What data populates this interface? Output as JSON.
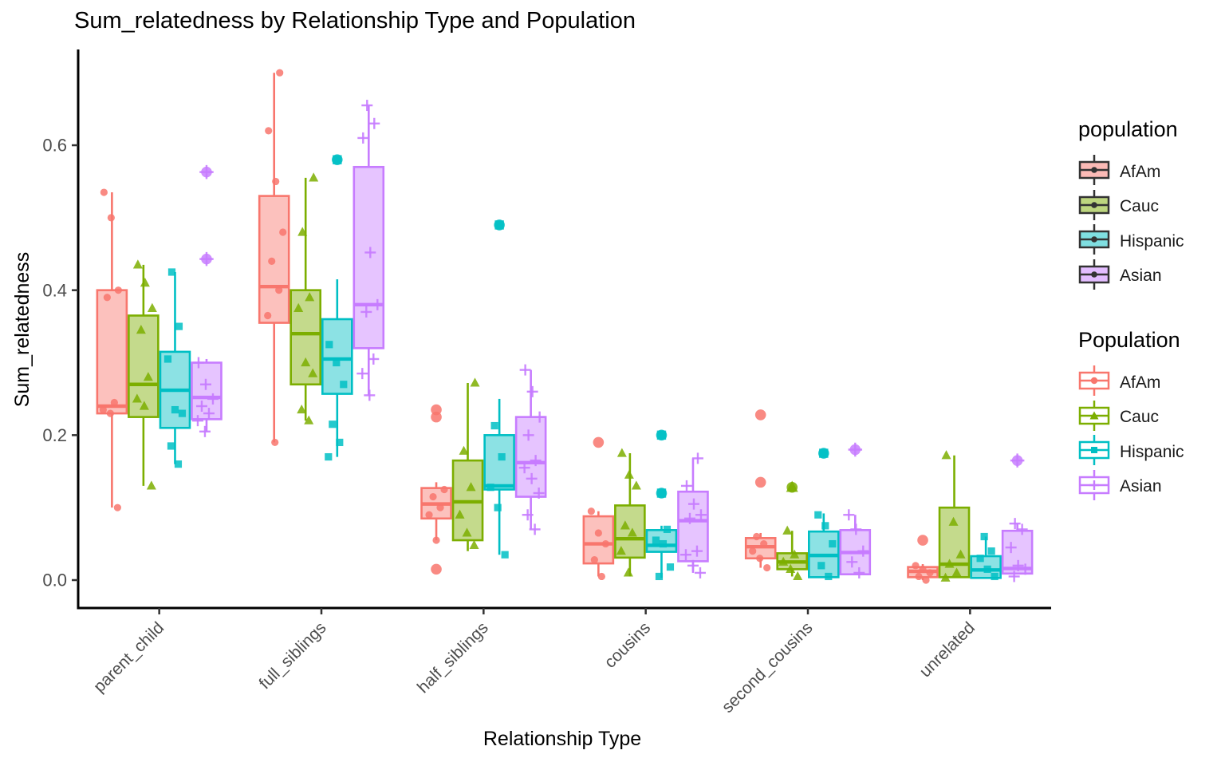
{
  "chart_data": {
    "type": "grouped_boxplot_with_jitter",
    "title": "Sum_relatedness by Relationship Type and Population",
    "xlabel": "Relationship Type",
    "ylabel": "Sum_relatedness",
    "categories": [
      "parent_child",
      "full_siblings",
      "half_siblings",
      "cousins",
      "second_cousins",
      "unrelated"
    ],
    "groups": [
      "AfAm",
      "Cauc",
      "Hispanic",
      "Asian"
    ],
    "group_colors": {
      "AfAm": "#F8766D",
      "Cauc": "#7CAE00",
      "Hispanic": "#00BFC4",
      "Asian": "#C77CFF"
    },
    "group_shapes": {
      "AfAm": "circle",
      "Cauc": "triangle",
      "Hispanic": "square",
      "Asian": "plus"
    },
    "y_ticks": [
      0.0,
      0.2,
      0.4,
      0.6
    ],
    "ylim": [
      0,
      0.732
    ],
    "grid": false,
    "legend_position": "right",
    "legends": [
      {
        "title": "population",
        "style": "fill",
        "items": [
          "AfAm",
          "Cauc",
          "Hispanic",
          "Asian"
        ]
      },
      {
        "title": "Population",
        "style": "outline",
        "items": [
          "AfAm",
          "Cauc",
          "Hispanic",
          "Asian"
        ]
      }
    ],
    "boxes": [
      {
        "category": "parent_child",
        "group": "AfAm",
        "min": 0.1,
        "q1": 0.23,
        "median": 0.24,
        "q3": 0.4,
        "max": 0.535,
        "outliers": [],
        "points": [
          0.535,
          0.5,
          0.4,
          0.39,
          0.245,
          0.235,
          0.23,
          0.1
        ]
      },
      {
        "category": "parent_child",
        "group": "Cauc",
        "min": 0.13,
        "q1": 0.225,
        "median": 0.27,
        "q3": 0.365,
        "max": 0.435,
        "outliers": [],
        "points": [
          0.435,
          0.41,
          0.375,
          0.345,
          0.28,
          0.25,
          0.24,
          0.13
        ]
      },
      {
        "category": "parent_child",
        "group": "Hispanic",
        "min": 0.16,
        "q1": 0.21,
        "median": 0.262,
        "q3": 0.315,
        "max": 0.425,
        "outliers": [],
        "points": [
          0.425,
          0.35,
          0.305,
          0.235,
          0.23,
          0.185,
          0.16
        ]
      },
      {
        "category": "parent_child",
        "group": "Asian",
        "min": 0.205,
        "q1": 0.222,
        "median": 0.252,
        "q3": 0.3,
        "max": 0.305,
        "outliers": [
          0.563,
          0.443
        ],
        "points": [
          0.3,
          0.27,
          0.25,
          0.24,
          0.23,
          0.22,
          0.205
        ]
      },
      {
        "category": "full_siblings",
        "group": "AfAm",
        "min": 0.19,
        "q1": 0.355,
        "median": 0.405,
        "q3": 0.53,
        "max": 0.7,
        "outliers": [],
        "points": [
          0.7,
          0.62,
          0.55,
          0.48,
          0.44,
          0.4,
          0.365,
          0.19
        ]
      },
      {
        "category": "full_siblings",
        "group": "Cauc",
        "min": 0.22,
        "q1": 0.27,
        "median": 0.34,
        "q3": 0.4,
        "max": 0.555,
        "outliers": [],
        "points": [
          0.555,
          0.48,
          0.39,
          0.375,
          0.3,
          0.285,
          0.235,
          0.22
        ]
      },
      {
        "category": "full_siblings",
        "group": "Hispanic",
        "min": 0.17,
        "q1": 0.257,
        "median": 0.305,
        "q3": 0.36,
        "max": 0.415,
        "outliers": [
          0.58
        ],
        "points": [
          0.325,
          0.3,
          0.27,
          0.215,
          0.19,
          0.17
        ]
      },
      {
        "category": "full_siblings",
        "group": "Asian",
        "min": 0.255,
        "q1": 0.32,
        "median": 0.38,
        "q3": 0.57,
        "max": 0.655,
        "outliers": [],
        "points": [
          0.655,
          0.63,
          0.61,
          0.452,
          0.38,
          0.37,
          0.305,
          0.285,
          0.255
        ]
      },
      {
        "category": "half_siblings",
        "group": "AfAm",
        "min": 0.055,
        "q1": 0.085,
        "median": 0.105,
        "q3": 0.127,
        "max": 0.135,
        "outliers": [
          0.235,
          0.225,
          0.015
        ],
        "points": [
          0.125,
          0.115,
          0.1,
          0.09,
          0.055
        ]
      },
      {
        "category": "half_siblings",
        "group": "Cauc",
        "min": 0.04,
        "q1": 0.055,
        "median": 0.108,
        "q3": 0.165,
        "max": 0.272,
        "outliers": [],
        "points": [
          0.272,
          0.178,
          0.128,
          0.09,
          0.065,
          0.048
        ]
      },
      {
        "category": "half_siblings",
        "group": "Hispanic",
        "min": 0.035,
        "q1": 0.125,
        "median": 0.13,
        "q3": 0.2,
        "max": 0.25,
        "outliers": [
          0.49
        ],
        "points": [
          0.213,
          0.17,
          0.128,
          0.1,
          0.035
        ]
      },
      {
        "category": "half_siblings",
        "group": "Asian",
        "min": 0.07,
        "q1": 0.115,
        "median": 0.162,
        "q3": 0.225,
        "max": 0.29,
        "outliers": [],
        "points": [
          0.29,
          0.26,
          0.225,
          0.2,
          0.165,
          0.155,
          0.14,
          0.12,
          0.09,
          0.07
        ]
      },
      {
        "category": "cousins",
        "group": "AfAm",
        "min": 0.005,
        "q1": 0.023,
        "median": 0.05,
        "q3": 0.088,
        "max": 0.095,
        "outliers": [
          0.19
        ],
        "points": [
          0.095,
          0.065,
          0.05,
          0.028,
          0.005
        ]
      },
      {
        "category": "cousins",
        "group": "Cauc",
        "min": 0.005,
        "q1": 0.031,
        "median": 0.057,
        "q3": 0.103,
        "max": 0.175,
        "outliers": [],
        "points": [
          0.175,
          0.145,
          0.13,
          0.075,
          0.065,
          0.04,
          0.01
        ]
      },
      {
        "category": "cousins",
        "group": "Hispanic",
        "min": 0.003,
        "q1": 0.039,
        "median": 0.048,
        "q3": 0.069,
        "max": 0.075,
        "outliers": [
          0.2,
          0.12
        ],
        "points": [
          0.07,
          0.055,
          0.05,
          0.018,
          0.005
        ]
      },
      {
        "category": "cousins",
        "group": "Asian",
        "min": 0.01,
        "q1": 0.026,
        "median": 0.082,
        "q3": 0.122,
        "max": 0.168,
        "outliers": [],
        "points": [
          0.168,
          0.13,
          0.105,
          0.09,
          0.085,
          0.04,
          0.035,
          0.02,
          0.01
        ]
      },
      {
        "category": "second_cousins",
        "group": "AfAm",
        "min": 0.017,
        "q1": 0.03,
        "median": 0.046,
        "q3": 0.058,
        "max": 0.065,
        "outliers": [
          0.228,
          0.135
        ],
        "points": [
          0.06,
          0.05,
          0.04,
          0.03,
          0.017
        ]
      },
      {
        "category": "second_cousins",
        "group": "Cauc",
        "min": 0.005,
        "q1": 0.015,
        "median": 0.025,
        "q3": 0.037,
        "max": 0.068,
        "outliers": [
          0.128
        ],
        "points": [
          0.068,
          0.035,
          0.025,
          0.015,
          0.005
        ]
      },
      {
        "category": "second_cousins",
        "group": "Hispanic",
        "min": 0.003,
        "q1": 0.004,
        "median": 0.034,
        "q3": 0.067,
        "max": 0.092,
        "outliers": [
          0.175
        ],
        "points": [
          0.09,
          0.075,
          0.05,
          0.02,
          0.005
        ]
      },
      {
        "category": "second_cousins",
        "group": "Asian",
        "min": 0.007,
        "q1": 0.008,
        "median": 0.038,
        "q3": 0.069,
        "max": 0.09,
        "outliers": [
          0.18
        ],
        "points": [
          0.09,
          0.07,
          0.04,
          0.025,
          0.01
        ]
      },
      {
        "category": "unrelated",
        "group": "AfAm",
        "min": 0.0,
        "q1": 0.004,
        "median": 0.012,
        "q3": 0.018,
        "max": 0.022,
        "outliers": [
          0.055
        ],
        "points": [
          0.02,
          0.015,
          0.01,
          0.005,
          0.0
        ]
      },
      {
        "category": "unrelated",
        "group": "Cauc",
        "min": 0.003,
        "q1": 0.004,
        "median": 0.022,
        "q3": 0.1,
        "max": 0.172,
        "outliers": [],
        "points": [
          0.172,
          0.08,
          0.035,
          0.022,
          0.01,
          0.003
        ]
      },
      {
        "category": "unrelated",
        "group": "Hispanic",
        "min": 0.002,
        "q1": 0.003,
        "median": 0.014,
        "q3": 0.033,
        "max": 0.06,
        "outliers": [],
        "points": [
          0.06,
          0.04,
          0.03,
          0.015,
          0.005
        ]
      },
      {
        "category": "unrelated",
        "group": "Asian",
        "min": 0.008,
        "q1": 0.009,
        "median": 0.016,
        "q3": 0.068,
        "max": 0.078,
        "outliers": [
          0.165
        ],
        "points": [
          0.078,
          0.07,
          0.045,
          0.02,
          0.015,
          0.005
        ]
      }
    ]
  }
}
